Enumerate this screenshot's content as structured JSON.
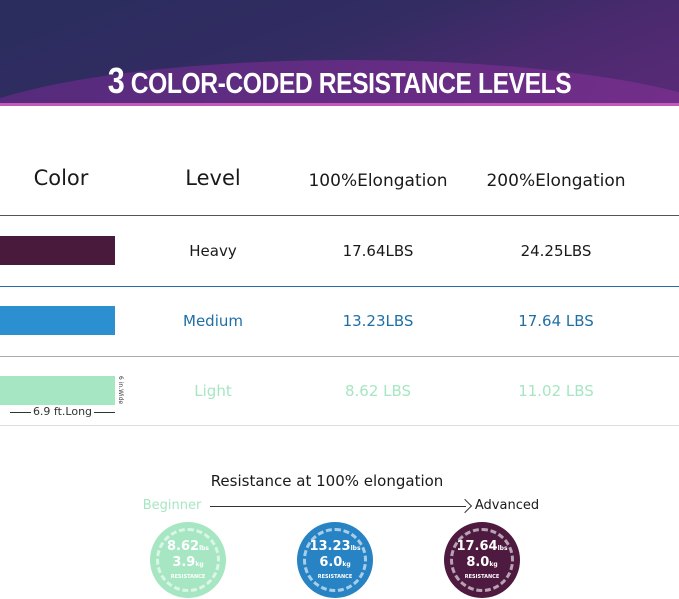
{
  "header": {
    "title_num": "3",
    "title_text": "COLOR-CODED RESISTANCE LEVELS"
  },
  "table": {
    "columns": [
      "Color",
      "Level",
      "100%Elongation",
      "200%Elongation"
    ],
    "rows": [
      {
        "level": "Heavy",
        "e100": "17.64LBS",
        "e200": "24.25LBS",
        "color": "#4a1a3c",
        "text_color": "#1a1a1a"
      },
      {
        "level": "Medium",
        "e100": "13.23LBS",
        "e200": "17.64 LBS",
        "color": "#2b8fd0",
        "text_color": "#1f6fa6"
      },
      {
        "level": "Light",
        "e100": "8.62 LBS",
        "e200": "11.02 LBS",
        "color": "#a6e6c2",
        "text_color": "#a6e6c2"
      }
    ],
    "length_label": "6.9 ft.Long",
    "width_label": "6 in.Wide"
  },
  "scale": {
    "title": "Resistance at 100% elongation",
    "start": "Beginner",
    "end": "Advanced",
    "circles": [
      {
        "lbs": "8.62",
        "lbs_unit": "lbs",
        "kg": "3.9",
        "kg_unit": "kg",
        "label": "RESISTANCE",
        "color": "#a6e6c2"
      },
      {
        "lbs": "13.23",
        "lbs_unit": "lbs",
        "kg": "6.0",
        "kg_unit": "kg",
        "label": "RESISTANCE",
        "color": "#2783c4"
      },
      {
        "lbs": "17.64",
        "lbs_unit": "lbs",
        "kg": "8.0",
        "kg_unit": "kg",
        "label": "RESISTANCE",
        "color": "#4e1a40"
      }
    ]
  }
}
